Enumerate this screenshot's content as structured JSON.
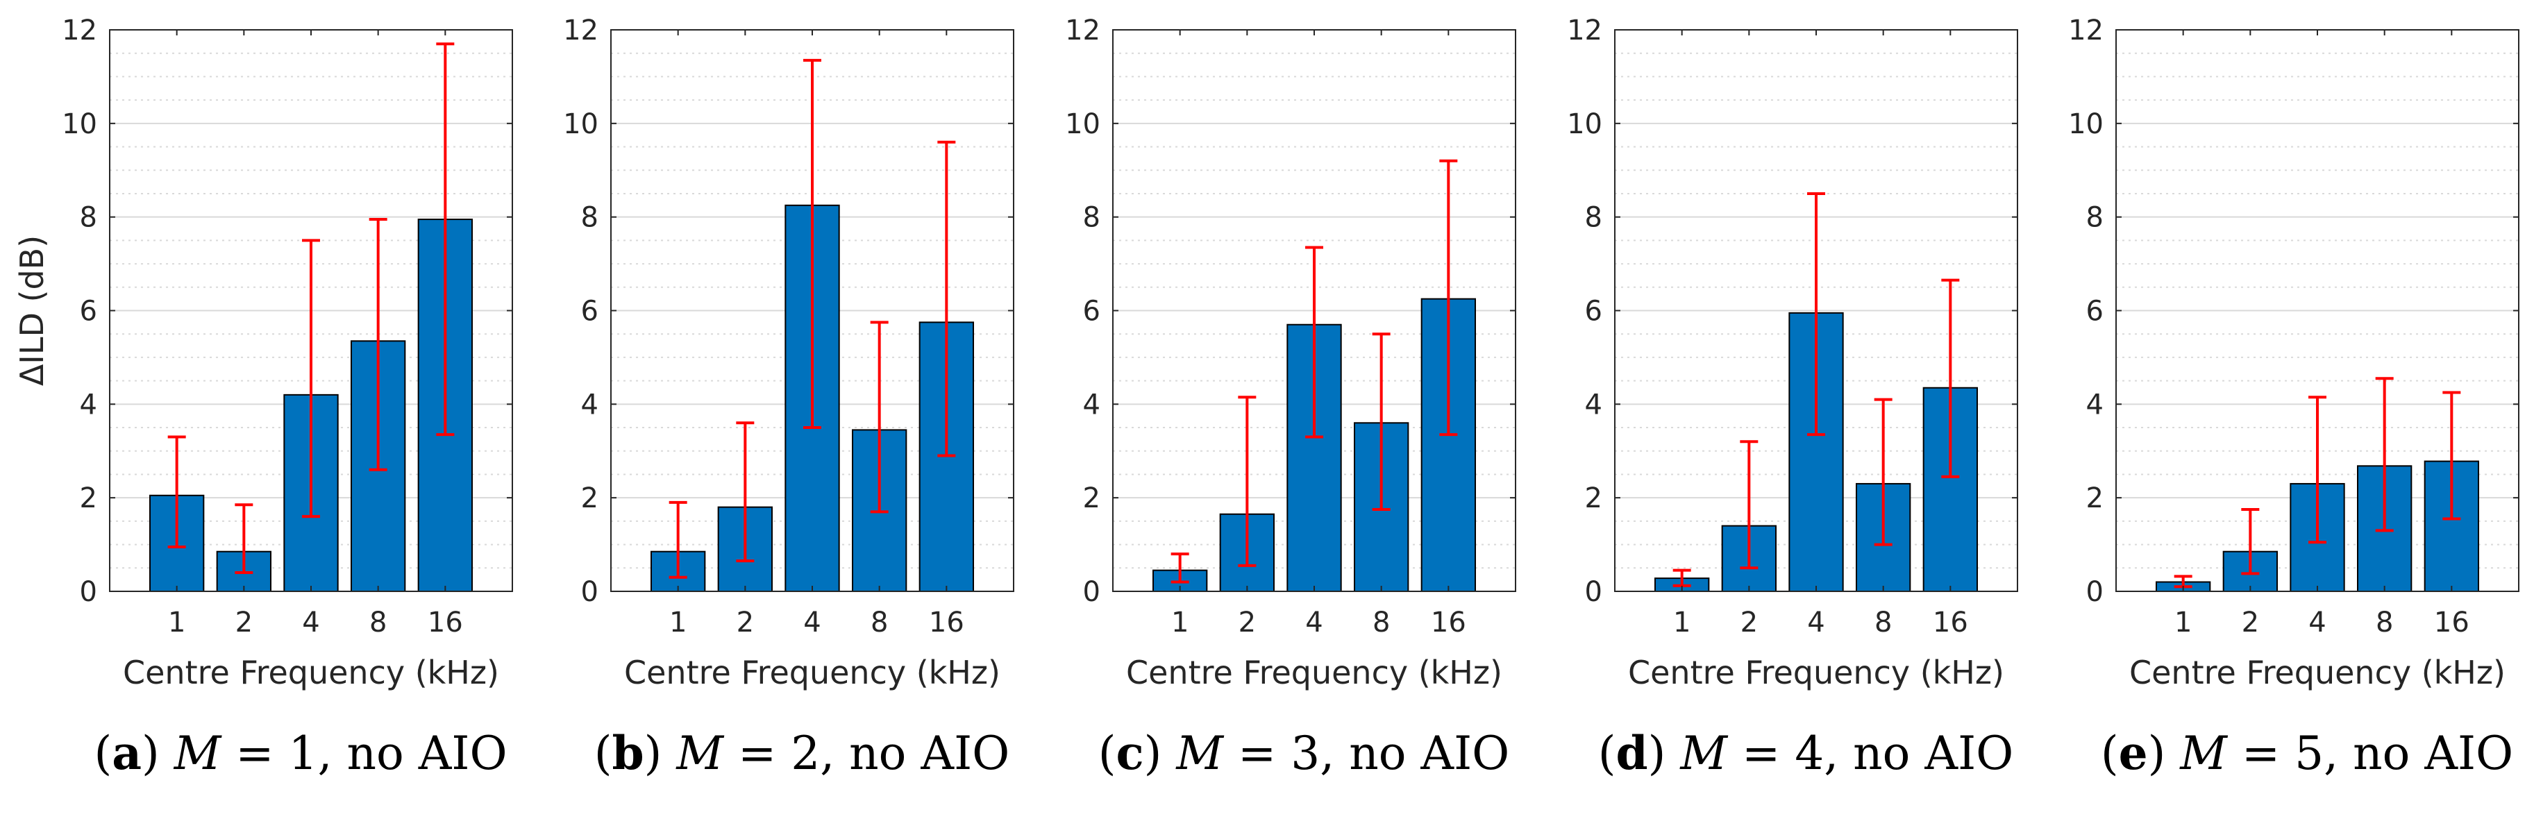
{
  "colors": {
    "bar": "#0072BD",
    "errorbar": "#FF0000",
    "major_grid": "#d9d9d9",
    "minor_grid": "#d9d9d9",
    "axis": "#262626"
  },
  "shared_ylabel": "ΔILD (dB)",
  "chart_data": [
    {
      "type": "bar",
      "categories": [
        "1",
        "2",
        "4",
        "8",
        "16"
      ],
      "values": [
        2.05,
        0.85,
        4.2,
        5.35,
        7.95
      ],
      "error_low": [
        0.95,
        0.4,
        1.6,
        2.6,
        3.35
      ],
      "error_high": [
        3.3,
        1.85,
        7.5,
        7.95,
        11.7
      ],
      "xlabel": "Centre Frequency (kHz)",
      "ylabel": "ΔILD (dB)",
      "ylim": [
        0,
        12
      ],
      "yticks": [
        0,
        2,
        4,
        6,
        8,
        10,
        12
      ],
      "ytick_labels": [
        "0",
        "2",
        "4",
        "6",
        "8",
        "10",
        "12"
      ],
      "grid": "major and minor",
      "caption": {
        "letter": "(a)",
        "var": "M",
        "rest": " = 1, no AIO"
      }
    },
    {
      "type": "bar",
      "categories": [
        "1",
        "2",
        "4",
        "8",
        "16"
      ],
      "values": [
        0.85,
        1.8,
        8.25,
        3.45,
        5.75
      ],
      "error_low": [
        0.3,
        0.65,
        3.5,
        1.7,
        2.9
      ],
      "error_high": [
        1.9,
        3.6,
        11.35,
        5.75,
        9.6
      ],
      "xlabel": "Centre Frequency (kHz)",
      "ylabel": "",
      "ylim": [
        0,
        12
      ],
      "yticks": [
        0,
        2,
        4,
        6,
        8,
        10,
        12
      ],
      "ytick_labels": [
        "0",
        "2",
        "4",
        "6",
        "8",
        "10",
        "12"
      ],
      "grid": "major and minor",
      "caption": {
        "letter": "(b)",
        "var": "M",
        "rest": " = 2, no AIO"
      }
    },
    {
      "type": "bar",
      "categories": [
        "1",
        "2",
        "4",
        "8",
        "16"
      ],
      "values": [
        0.45,
        1.65,
        5.7,
        3.6,
        6.25
      ],
      "error_low": [
        0.2,
        0.55,
        3.3,
        1.75,
        3.35
      ],
      "error_high": [
        0.8,
        4.15,
        7.35,
        5.5,
        9.2
      ],
      "xlabel": "Centre Frequency (kHz)",
      "ylabel": "",
      "ylim": [
        0,
        12
      ],
      "yticks": [
        0,
        2,
        4,
        6,
        8,
        10,
        12
      ],
      "ytick_labels": [
        "0",
        "2",
        "4",
        "6",
        "8",
        "10",
        "12"
      ],
      "grid": "major and minor",
      "caption": {
        "letter": "(c)",
        "var": "M",
        "rest": " = 3, no AIO"
      }
    },
    {
      "type": "bar",
      "categories": [
        "1",
        "2",
        "4",
        "8",
        "16"
      ],
      "values": [
        0.28,
        1.4,
        5.95,
        2.3,
        4.35
      ],
      "error_low": [
        0.12,
        0.5,
        3.35,
        1.0,
        2.45
      ],
      "error_high": [
        0.45,
        3.2,
        8.5,
        4.1,
        6.65
      ],
      "xlabel": "Centre Frequency (kHz)",
      "ylabel": "",
      "ylim": [
        0,
        12
      ],
      "yticks": [
        0,
        2,
        4,
        6,
        8,
        10,
        12
      ],
      "ytick_labels": [
        "0",
        "2",
        "4",
        "6",
        "8",
        "10",
        "12"
      ],
      "grid": "major and minor",
      "caption": {
        "letter": "(d)",
        "var": "M",
        "rest": " = 4, no AIO"
      }
    },
    {
      "type": "bar",
      "categories": [
        "1",
        "2",
        "4",
        "8",
        "16"
      ],
      "values": [
        0.2,
        0.85,
        2.3,
        2.68,
        2.78
      ],
      "error_low": [
        0.1,
        0.38,
        1.05,
        1.3,
        1.55
      ],
      "error_high": [
        0.32,
        1.75,
        4.15,
        4.55,
        4.25
      ],
      "xlabel": "Centre Frequency (kHz)",
      "ylabel": "",
      "ylim": [
        0,
        12
      ],
      "yticks": [
        0,
        2,
        4,
        6,
        8,
        10,
        12
      ],
      "ytick_labels": [
        "0",
        "2",
        "4",
        "6",
        "8",
        "10",
        "12"
      ],
      "grid": "major and minor",
      "caption": {
        "letter": "(e)",
        "var": "M",
        "rest": " = 5, no AIO"
      }
    }
  ]
}
